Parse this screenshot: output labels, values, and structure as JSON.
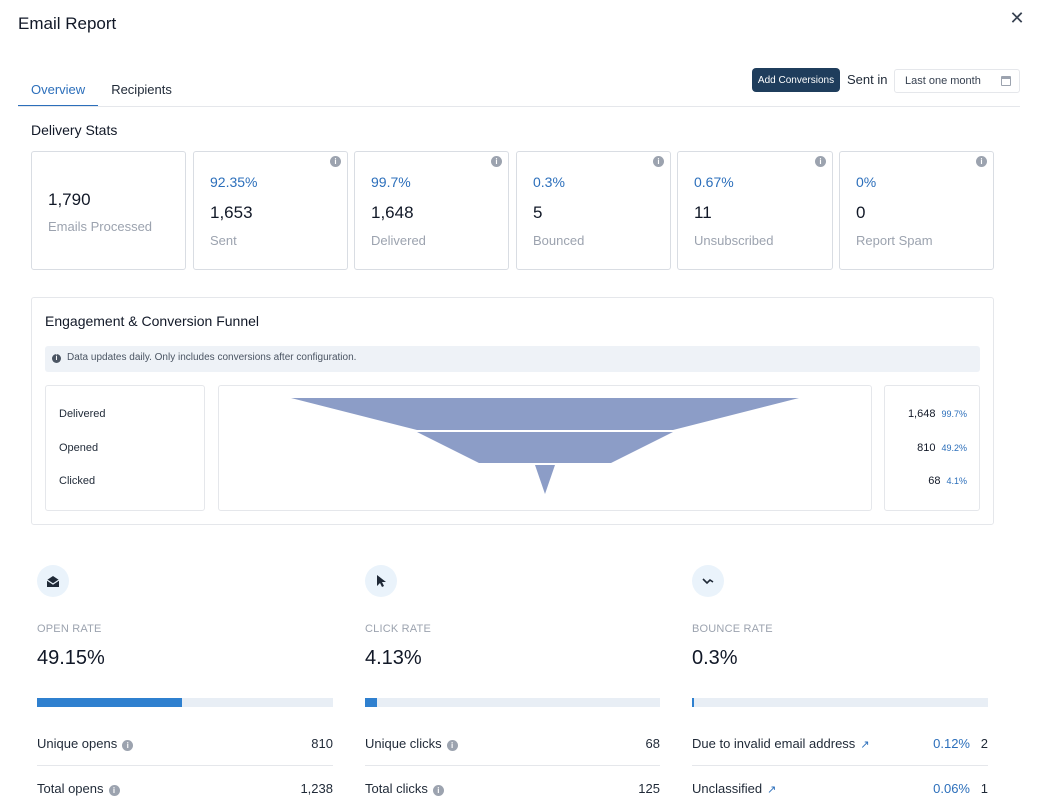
{
  "modal": {
    "title": "Email Report",
    "close_glyph": "✕"
  },
  "tabs": [
    {
      "label": "Overview",
      "active": true
    },
    {
      "label": "Recipients",
      "active": false
    }
  ],
  "toolbar": {
    "add_conversions_label": "Add Conversions",
    "sent_in_label": "Sent in",
    "date_range_value": "Last one month",
    "date_icon": "calendar-icon"
  },
  "delivery": {
    "title": "Delivery Stats",
    "cards": [
      {
        "pct": "",
        "value": "1,790",
        "label": "Emails Processed"
      },
      {
        "pct": "92.35%",
        "value": "1,653",
        "label": "Sent"
      },
      {
        "pct": "99.7%",
        "value": "1,648",
        "label": "Delivered"
      },
      {
        "pct": "0.3%",
        "value": "5",
        "label": "Bounced"
      },
      {
        "pct": "0.67%",
        "value": "11",
        "label": "Unsubscribed"
      },
      {
        "pct": "0%",
        "value": "0",
        "label": "Report Spam"
      }
    ]
  },
  "funnel": {
    "title": "Engagement & Conversion Funnel",
    "notice": "Data updates daily. Only includes conversions after configuration.",
    "color": "#8c9dc7",
    "stages": [
      {
        "label": "Delivered",
        "count": "1,648",
        "pct": "99.7%"
      },
      {
        "label": "Opened",
        "count": "810",
        "pct": "49.2%"
      },
      {
        "label": "Clicked",
        "count": "68",
        "pct": "4.1%"
      }
    ]
  },
  "metrics": {
    "accent": "#2f80cf",
    "open": {
      "icon": "envelope-open-icon",
      "label": "OPEN RATE",
      "value": "49.15%",
      "fraction": 0.4915,
      "rows": [
        {
          "label": "Unique opens",
          "value": "810"
        },
        {
          "label": "Total opens",
          "value": "1,238"
        }
      ]
    },
    "click": {
      "icon": "cursor-icon",
      "label": "CLICK RATE",
      "value": "4.13%",
      "fraction": 0.0413,
      "rows": [
        {
          "label": "Unique clicks",
          "value": "68"
        },
        {
          "label": "Total clicks",
          "value": "125"
        }
      ]
    },
    "bounce": {
      "icon": "bounce-icon",
      "label": "BOUNCE RATE",
      "value": "0.3%",
      "fraction": 0.003,
      "rows": [
        {
          "label": "Due to invalid email address",
          "pct": "0.12%",
          "value": "2"
        },
        {
          "label": "Unclassified",
          "pct": "0.06%",
          "value": "1"
        }
      ]
    }
  }
}
